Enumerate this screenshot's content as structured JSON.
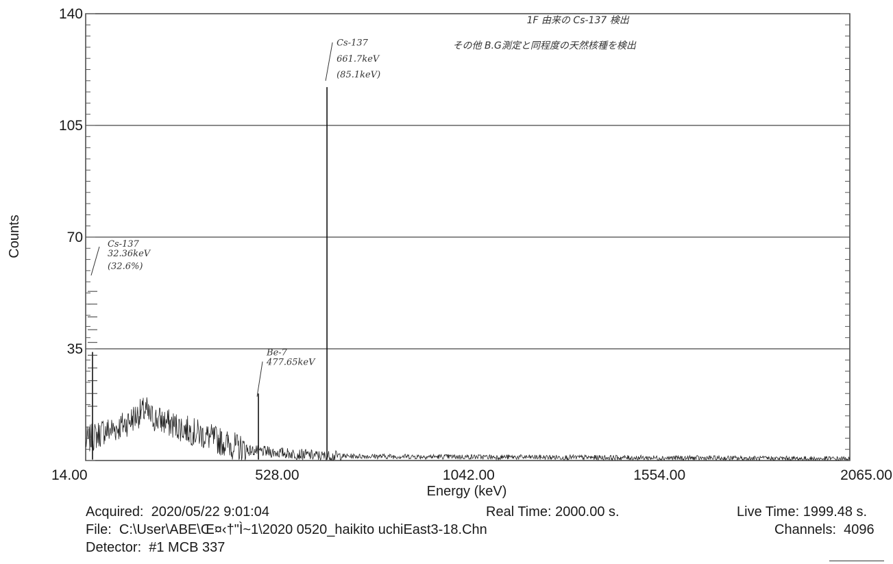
{
  "chart_data": {
    "type": "line",
    "xlabel": "Energy (keV)",
    "ylabel": "Counts",
    "xlim": [
      14.0,
      2065.0
    ],
    "ylim": [
      0,
      140
    ],
    "x_ticks": [
      "14.00",
      "528.00",
      "1042.00",
      "1554.00",
      "2065.00"
    ],
    "y_ticks": [
      "140",
      "105",
      "70",
      "35"
    ],
    "y_tick_values": [
      140,
      105,
      70,
      35
    ],
    "grid": "horizontal at 35, 70, 105",
    "peaks": [
      {
        "x": 32.36,
        "y": 34
      },
      {
        "x": 477.65,
        "y": 21
      },
      {
        "x": 661.7,
        "y": 117
      }
    ],
    "annotations": [
      {
        "text": "Cs-137",
        "x": 32.36,
        "y": 67
      },
      {
        "text": "32.36keV",
        "x": 32.36,
        "y": 64
      },
      {
        "text": "(32.6%)",
        "x": 32.36,
        "y": 60
      },
      {
        "text": "Be-7",
        "x": 477.65,
        "y": 33
      },
      {
        "text": "477.65keV",
        "x": 477.65,
        "y": 30
      },
      {
        "text": "Cs-137",
        "x": 661.7,
        "y": 130
      },
      {
        "text": "661.7keV",
        "x": 661.7,
        "y": 125
      },
      {
        "text": "(85.1keV)",
        "x": 661.7,
        "y": 120
      },
      {
        "text": "1F 由来の Cs-137 検出",
        "x": 1335,
        "y": 137
      },
      {
        "text": "その他 B.G測定と同程度の天然核種を検出",
        "x": 1245,
        "y": 129
      }
    ]
  },
  "info": {
    "acquired": "Acquired:  2020/05/22 9:01:04",
    "real_time": "Real Time: 2000.00 s.",
    "live_time": "Live Time: 1999.48 s.",
    "file": "File:  C:\\User\\ABE\\Œ¤‹†\"Ì~1\\2020 0520_haikito uchiEast3-18.Chn",
    "channels": "Channels:  4096",
    "detector": "Detector:  #1 MCB 337"
  }
}
